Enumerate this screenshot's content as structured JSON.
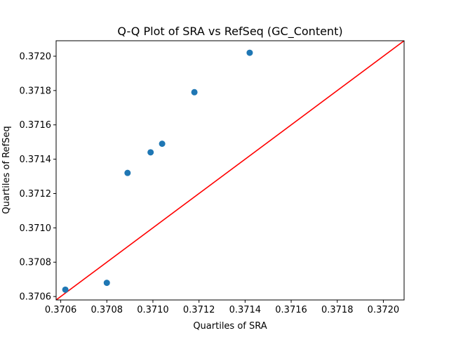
{
  "chart_data": {
    "type": "scatter",
    "title": "Q-Q Plot of SRA vs RefSeq (GC_Content)",
    "xlabel": "Quartiles of SRA",
    "ylabel": "Quartiles of RefSeq",
    "xlim": [
      0.37058,
      0.37209
    ],
    "ylim": [
      0.37058,
      0.37209
    ],
    "xticks": [
      {
        "value": 0.3706,
        "label": "0.3706"
      },
      {
        "value": 0.3708,
        "label": "0.3708"
      },
      {
        "value": 0.371,
        "label": "0.3710"
      },
      {
        "value": 0.3712,
        "label": "0.3712"
      },
      {
        "value": 0.3714,
        "label": "0.3714"
      },
      {
        "value": 0.3716,
        "label": "0.3716"
      },
      {
        "value": 0.3718,
        "label": "0.3718"
      },
      {
        "value": 0.372,
        "label": "0.3720"
      }
    ],
    "yticks": [
      {
        "value": 0.3706,
        "label": "0.3706"
      },
      {
        "value": 0.3708,
        "label": "0.3708"
      },
      {
        "value": 0.371,
        "label": "0.3710"
      },
      {
        "value": 0.3712,
        "label": "0.3712"
      },
      {
        "value": 0.3714,
        "label": "0.3714"
      },
      {
        "value": 0.3716,
        "label": "0.3716"
      },
      {
        "value": 0.3718,
        "label": "0.3718"
      },
      {
        "value": 0.372,
        "label": "0.3720"
      }
    ],
    "points": [
      {
        "x": 0.37062,
        "y": 0.37064
      },
      {
        "x": 0.3708,
        "y": 0.37068
      },
      {
        "x": 0.37089,
        "y": 0.37132
      },
      {
        "x": 0.37099,
        "y": 0.37144
      },
      {
        "x": 0.37104,
        "y": 0.37149
      },
      {
        "x": 0.37118,
        "y": 0.37179
      },
      {
        "x": 0.37142,
        "y": 0.37202
      }
    ],
    "reference_line": {
      "x": [
        0.37058,
        0.37209
      ],
      "y": [
        0.37058,
        0.37209
      ]
    },
    "grid": false,
    "colors": {
      "points": "#1f77b4",
      "line": "#ff0000"
    }
  }
}
